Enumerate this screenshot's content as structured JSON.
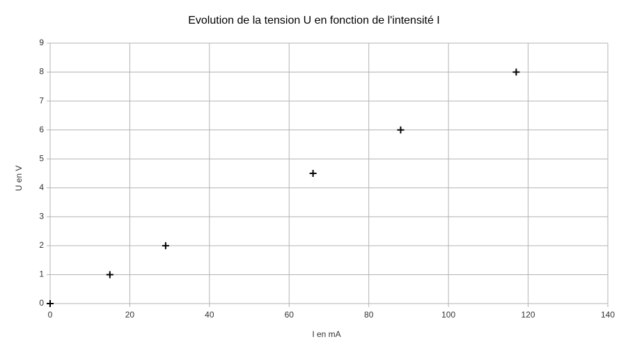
{
  "chart_data": {
    "type": "scatter",
    "title": "Evolution de la tension U en fonction de l'intensité I",
    "x_label": "I en mA",
    "y_label": "U en V",
    "x": [
      0,
      15,
      29,
      66,
      88,
      117
    ],
    "values": [
      0,
      1,
      2,
      4.5,
      6,
      8
    ],
    "color": "#000000",
    "xlim": [
      0,
      140
    ],
    "xticks": [
      0,
      20,
      40,
      60,
      80,
      100,
      120,
      140
    ],
    "ylim": [
      0,
      9
    ],
    "yticks": [
      0,
      1,
      2,
      3,
      4,
      5,
      6,
      7,
      8,
      9
    ],
    "grid": true
  }
}
